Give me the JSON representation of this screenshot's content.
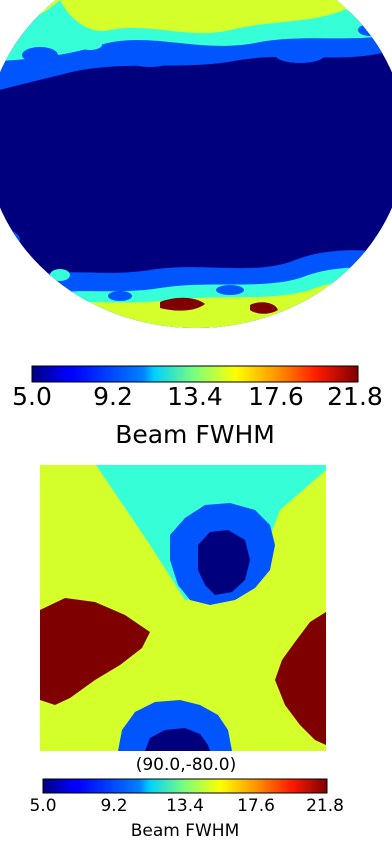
{
  "top_colorbar": {
    "ticks": [
      "5.0",
      "9.2",
      "13.4",
      "17.6",
      "21.8"
    ],
    "label": "Beam FWHM"
  },
  "zoom_panel": {
    "title": "(90.0,-80.0)"
  },
  "bottom_colorbar": {
    "ticks": [
      "5.0",
      "9.2",
      "13.4",
      "17.6",
      "21.8"
    ],
    "label": "Beam FWHM"
  },
  "colors": {
    "dark_blue": "#00007f",
    "blue": "#0055ff",
    "cyan": "#36ffd8",
    "yellow_green": "#d4ff2a",
    "dark_red": "#7f0000"
  },
  "chart_data": [
    {
      "type": "heatmap",
      "projection": "mollweide",
      "colormap": "jet",
      "range": [
        5.0,
        21.8
      ],
      "colorbar_ticks": [
        5.0,
        9.2,
        13.4,
        17.6,
        21.8
      ],
      "colorbar_label": "Beam FWHM"
    },
    {
      "type": "heatmap",
      "title": "(90.0,-80.0)",
      "colormap": "jet",
      "range": [
        5.0,
        21.8
      ],
      "colorbar_ticks": [
        5.0,
        9.2,
        13.4,
        17.6,
        21.8
      ],
      "colorbar_label": "Beam FWHM"
    }
  ]
}
